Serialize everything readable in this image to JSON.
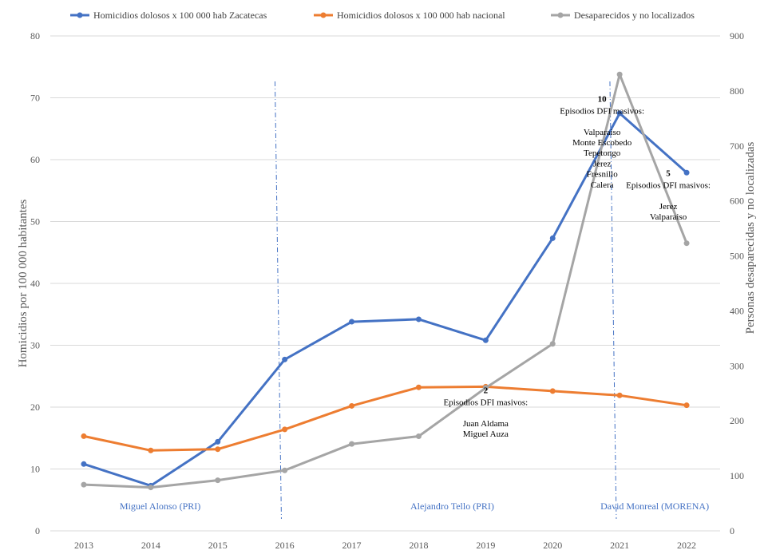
{
  "chart_data": {
    "type": "line",
    "categories": [
      "2013",
      "2014",
      "2015",
      "2016",
      "2017",
      "2018",
      "2019",
      "2020",
      "2021",
      "2022"
    ],
    "series": [
      {
        "name": "Homicidios dolosos x 100 000 hab Zacatecas",
        "axis": "left",
        "color": "#4472C4",
        "values": [
          10.8,
          7.3,
          14.4,
          27.7,
          33.8,
          34.2,
          30.8,
          47.3,
          67.5,
          57.9
        ]
      },
      {
        "name": "Homicidios dolosos x 100 000 hab nacional",
        "axis": "left",
        "color": "#ED7D31",
        "values": [
          15.3,
          13.0,
          13.2,
          16.4,
          20.2,
          23.2,
          23.3,
          22.6,
          21.9,
          20.3
        ]
      },
      {
        "name": "Desaparecidos y no localizados",
        "axis": "right",
        "color": "#A5A5A5",
        "values": [
          84,
          79,
          92,
          110,
          158,
          172,
          260,
          340,
          830,
          523
        ]
      }
    ],
    "ylabel": "Homicidios  por 100 000 habitantes",
    "ylabel_right": "Personas desaparecidas y no localizadas",
    "ylim": [
      0,
      80
    ],
    "ylim_right": [
      0,
      900
    ],
    "yticks": [
      0,
      10,
      20,
      30,
      40,
      50,
      60,
      70,
      80
    ],
    "yticks_right": [
      0,
      100,
      200,
      300,
      400,
      500,
      600,
      700,
      800,
      900
    ],
    "grid": true,
    "legend_position": "top",
    "annotations": [
      {
        "anchor_year": "2019",
        "anchor_value": 23.3,
        "number": "2",
        "lines": [
          "Episodios DFI masivos:",
          "",
          "Juan Aldama",
          "Miguel Auza"
        ]
      },
      {
        "anchor_year": "2021",
        "anchor_value": 61.5,
        "number": "10",
        "lines": [
          "Episodios DFI masivos:",
          "",
          "Valparaiso",
          "Monte Escobedo",
          "Tepetongo",
          "Jerez",
          "Fresnillo",
          "Calera"
        ]
      },
      {
        "anchor_year": "2022",
        "anchor_value": 42.5,
        "number": "5",
        "lines": [
          "Episodios DFI masivos:",
          "",
          "Jerez",
          "Valparaiso"
        ]
      }
    ],
    "periods": [
      {
        "label": "Miguel Alonso (PRI)",
        "from_year": "2013",
        "to_year": "2016"
      },
      {
        "label": "Alejandro Tello (PRI)",
        "from_year": "2016",
        "to_year": "2021"
      },
      {
        "label": "David Monreal (MORENA)",
        "from_year": "2021",
        "to_year": "2022"
      }
    ],
    "period_boundaries": [
      "2016",
      "2021"
    ]
  }
}
